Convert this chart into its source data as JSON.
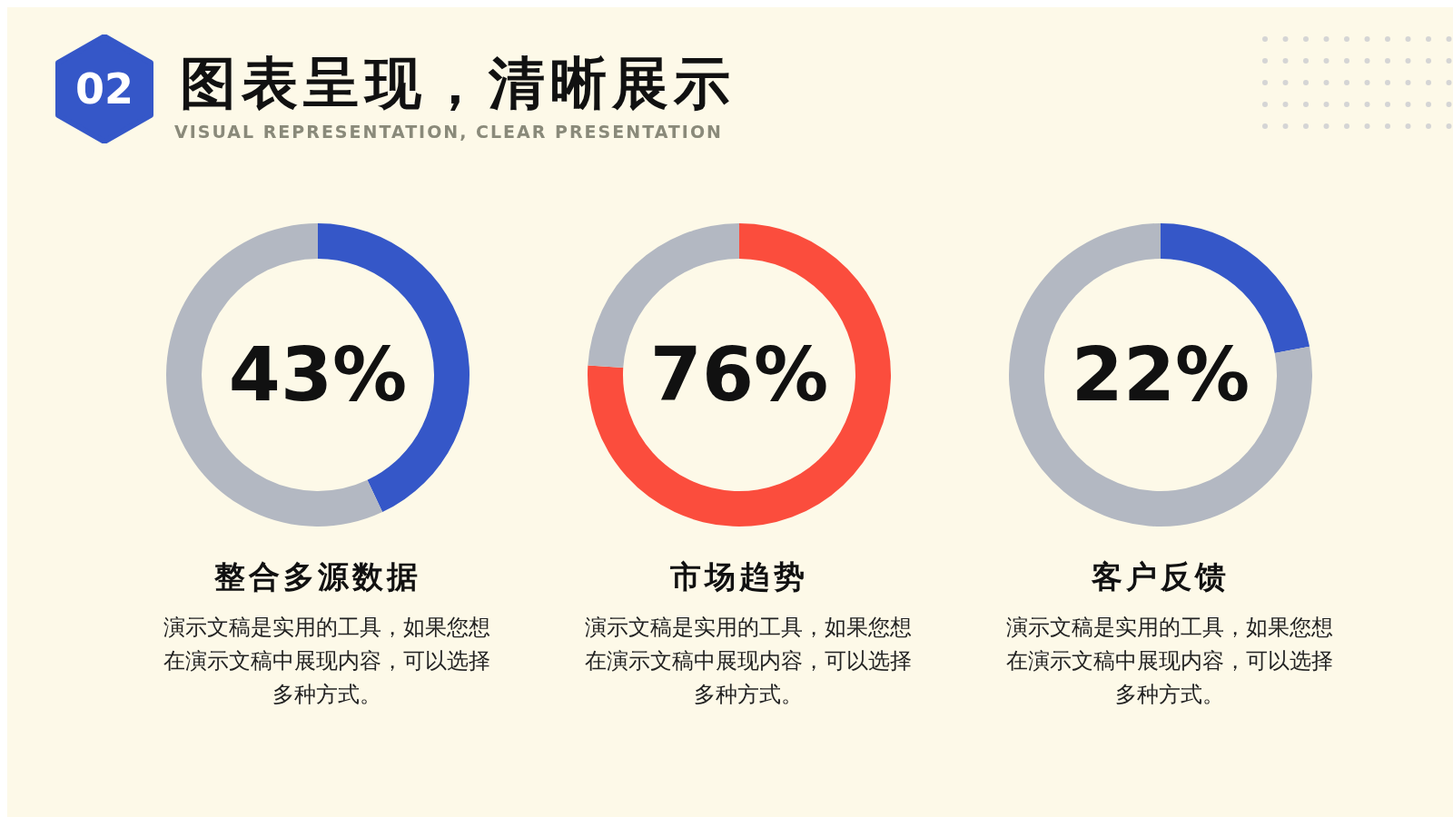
{
  "chart_data": [
    {
      "type": "other",
      "title": "图表呈现，清晰展示",
      "subtitle": "VISUAL REPRESENTATION, CLEAR PRESENTATION",
      "annotations": [
        "02"
      ]
    },
    {
      "type": "donut",
      "title": "整合多源数据",
      "categories": [
        null,
        null
      ],
      "values": [
        43,
        57
      ],
      "colors": [
        "#3557c8",
        "#b3b8c2"
      ],
      "value_labels": [
        "43%",
        null
      ],
      "annotations": [
        "演示文稿是实用的工具，如果您想在演示文稿中展现内容，可以选择多种方式。"
      ]
    },
    {
      "type": "donut",
      "title": "市场趋势",
      "categories": [
        null,
        null
      ],
      "values": [
        76,
        24
      ],
      "colors": [
        "#fb4d3d",
        "#b3b8c2"
      ],
      "value_labels": [
        "76%",
        null
      ],
      "annotations": [
        "演示文稿是实用的工具，如果您想在演示文稿中展现内容，可以选择多种方式。"
      ]
    },
    {
      "type": "donut",
      "title": "客户反馈",
      "categories": [
        null,
        null
      ],
      "values": [
        22,
        78
      ],
      "colors": [
        "#3557c8",
        "#b3b8c2"
      ],
      "value_labels": [
        "22%",
        null
      ],
      "annotations": [
        "演示文稿是实用的工具，如果您想在演示文稿中展现内容，可以选择多种方式。"
      ]
    }
  ]
}
